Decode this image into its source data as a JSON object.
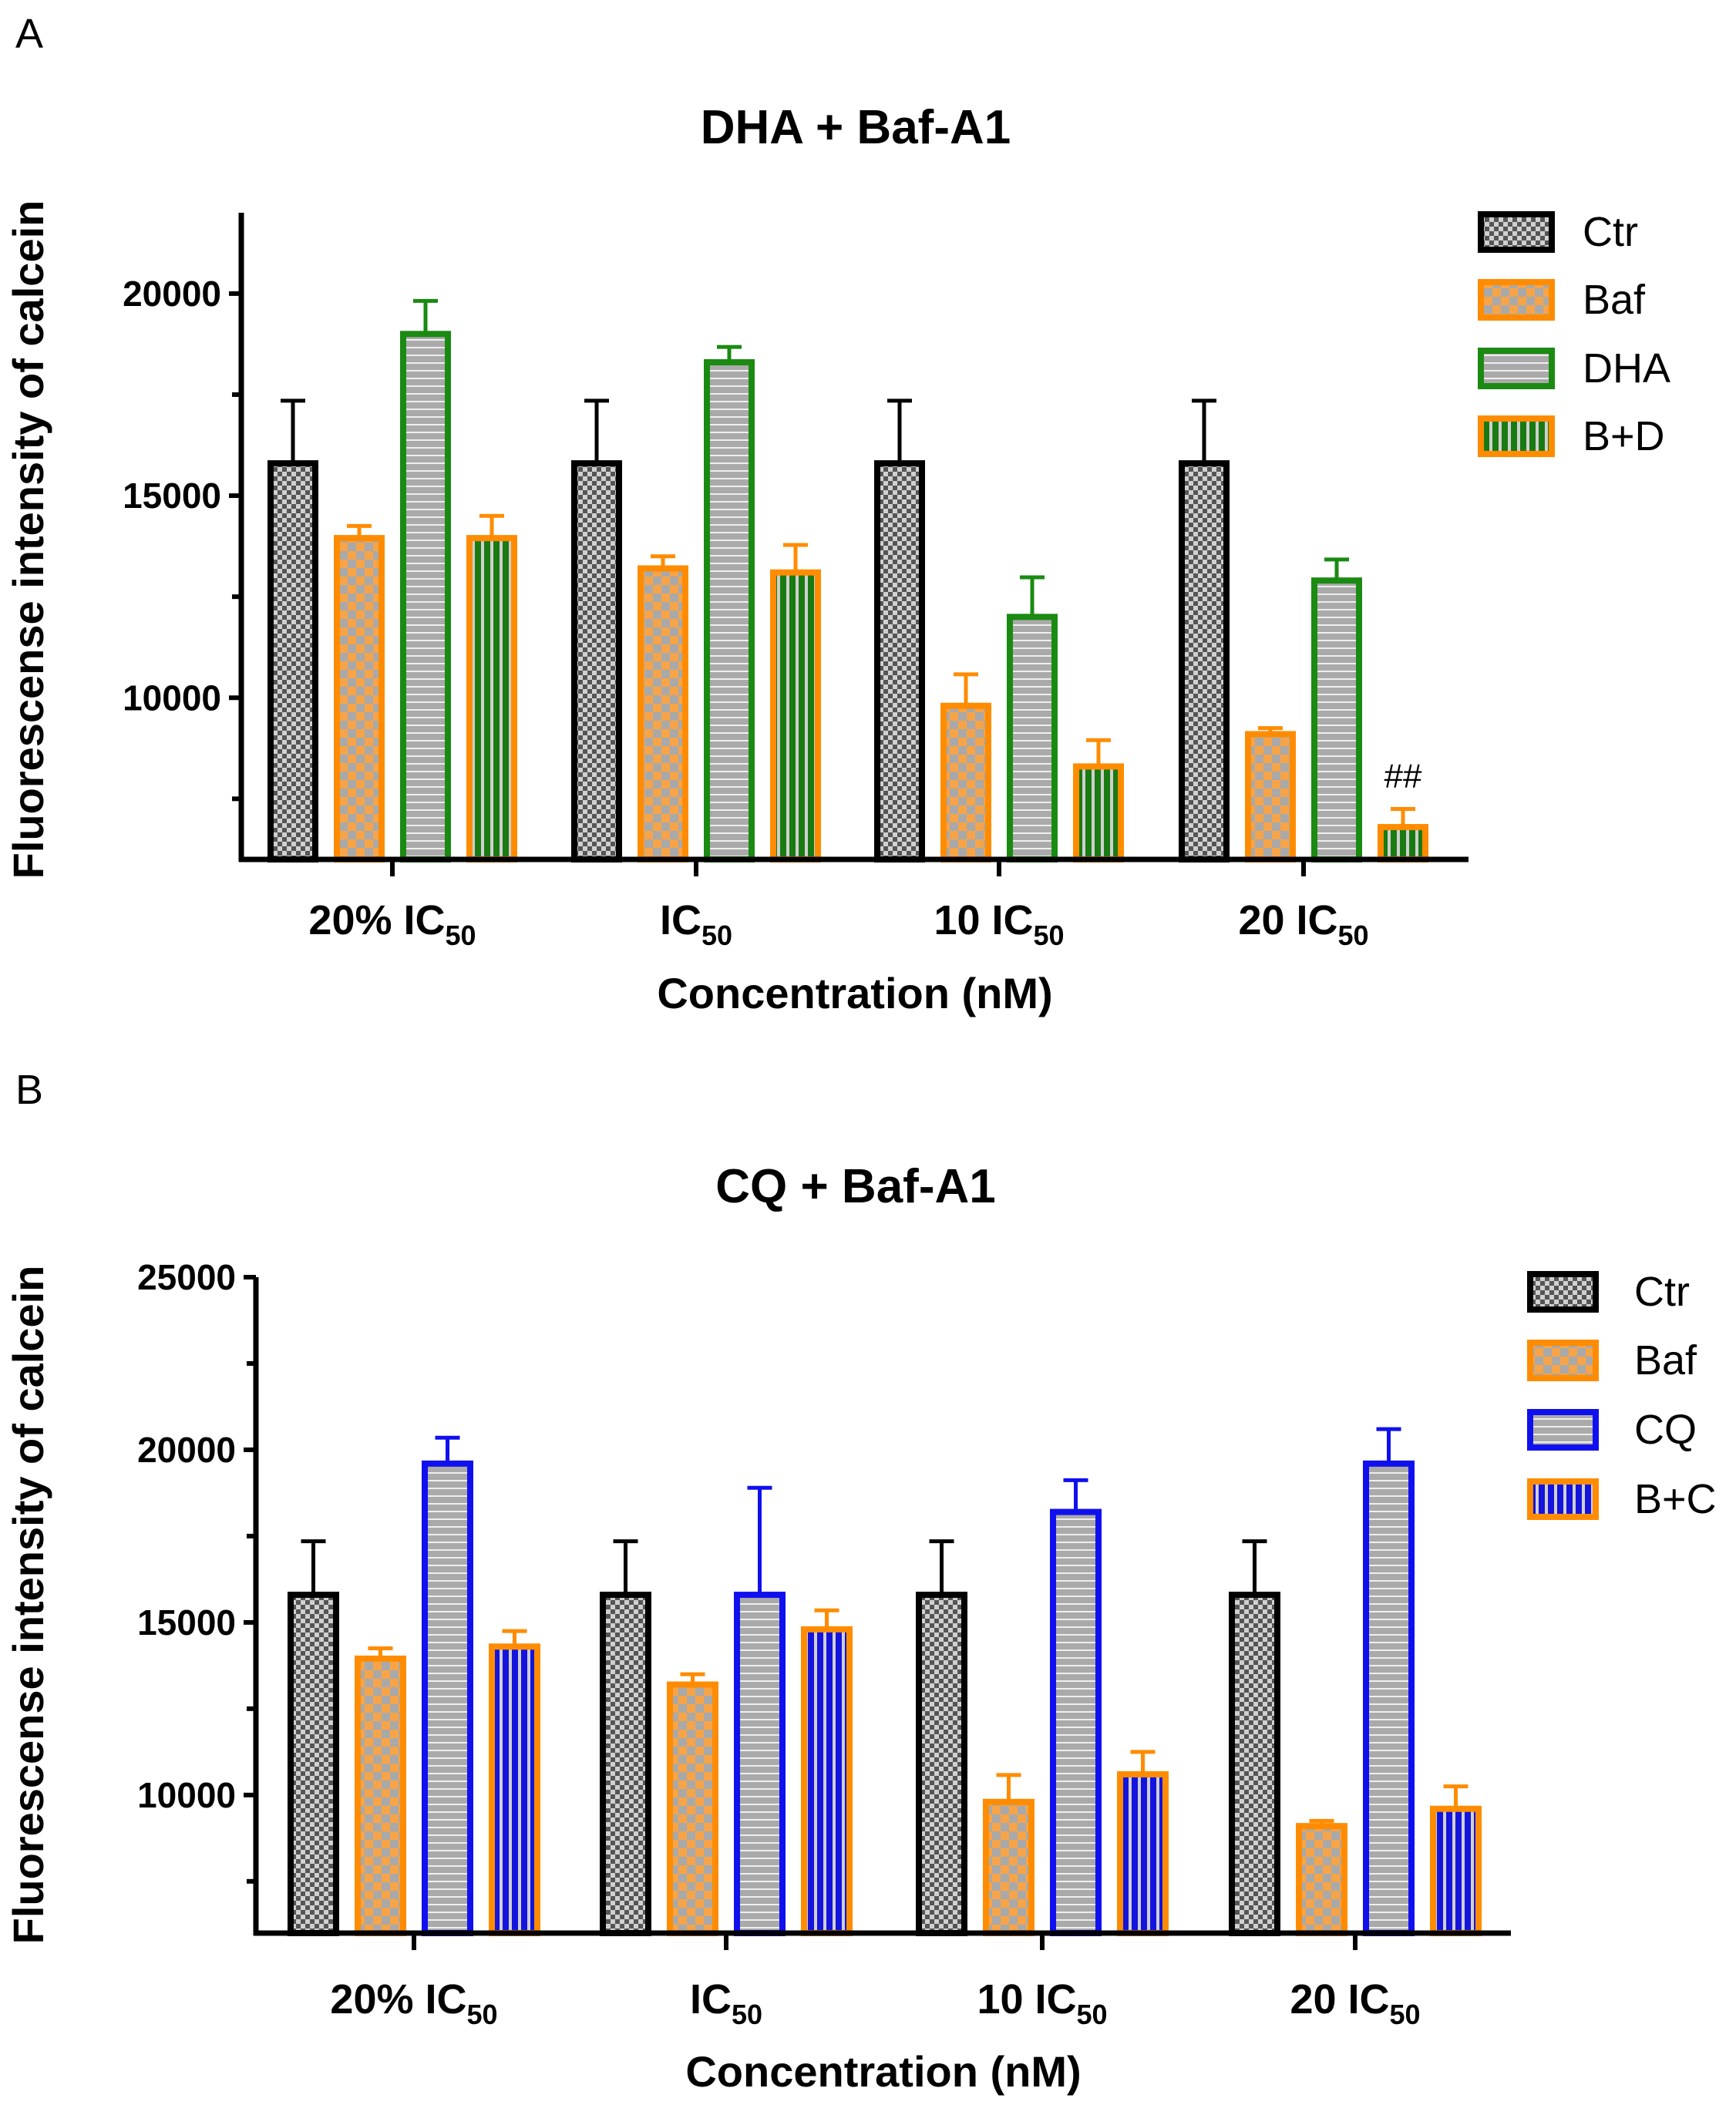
{
  "chart_data": [
    {
      "panel": "A",
      "type": "bar",
      "title": "DHA + Baf-A1",
      "xlabel": "Concentration (nM)",
      "ylabel": "Fluorescense intensity of calcein",
      "ylim": [
        6000,
        22000
      ],
      "yticks": [
        10000,
        15000,
        20000
      ],
      "minor_ticks": [
        7500,
        12500,
        17500
      ],
      "categories": [
        {
          "main": "20% IC",
          "sub": "50"
        },
        {
          "main": "IC",
          "sub": "50"
        },
        {
          "main": "10 IC",
          "sub": "50"
        },
        {
          "main": "20 IC",
          "sub": "50"
        }
      ],
      "series": [
        {
          "name": "Ctr",
          "pattern": "checker",
          "edge": "#000000",
          "fill": "#777777",
          "values": [
            15800,
            15800,
            15800,
            15800
          ],
          "errors": [
            1550,
            1550,
            1550,
            1550
          ]
        },
        {
          "name": "Baf",
          "pattern": "checker",
          "edge": "#ff8c00",
          "fill": "#f5a64b",
          "values": [
            13950,
            13200,
            9800,
            9100
          ],
          "errors": [
            300,
            300,
            780,
            150
          ]
        },
        {
          "name": "DHA",
          "pattern": "hlines",
          "edge": "#1a8a12",
          "fill": "#a3a3a3",
          "values": [
            19000,
            18300,
            12000,
            12900
          ],
          "errors": [
            820,
            380,
            980,
            520
          ]
        },
        {
          "name": "B+D",
          "pattern": "vlines",
          "edge": "#ff8c00",
          "fill": "#1a7a12",
          "values": [
            13950,
            13100,
            8300,
            6800
          ],
          "errors": [
            550,
            680,
            650,
            450
          ]
        }
      ],
      "annotations": [
        {
          "text": "##",
          "category": "20 IC50",
          "series": "B+D"
        }
      ],
      "legend_position": "top-right"
    },
    {
      "panel": "B",
      "type": "bar",
      "title": "CQ + Baf-A1",
      "xlabel": "Concentration (nM)",
      "ylabel": "Fluorescense intensity of calcein",
      "ylim": [
        6000,
        25000
      ],
      "yticks": [
        10000,
        15000,
        20000,
        25000
      ],
      "minor_ticks": [
        7500,
        12500,
        17500,
        22500
      ],
      "categories": [
        {
          "main": "20% IC",
          "sub": "50"
        },
        {
          "main": "IC",
          "sub": "50"
        },
        {
          "main": "10 IC",
          "sub": "50"
        },
        {
          "main": "20 IC",
          "sub": "50"
        }
      ],
      "series": [
        {
          "name": "Ctr",
          "pattern": "checker",
          "edge": "#000000",
          "fill": "#777777",
          "values": [
            15800,
            15800,
            15800,
            15800
          ],
          "errors": [
            1550,
            1550,
            1550,
            1550
          ]
        },
        {
          "name": "Baf",
          "pattern": "checker",
          "edge": "#ff8c00",
          "fill": "#f5a64b",
          "values": [
            13950,
            13200,
            9800,
            9100
          ],
          "errors": [
            300,
            300,
            780,
            150
          ]
        },
        {
          "name": "CQ",
          "pattern": "hlines",
          "edge": "#1010ee",
          "fill": "#a3a3a3",
          "values": [
            19600,
            15800,
            18200,
            19600
          ],
          "errors": [
            750,
            3100,
            920,
            1000
          ]
        },
        {
          "name": "B+C",
          "pattern": "vlines",
          "edge": "#ff8c00",
          "fill": "#1414dd",
          "values": [
            14300,
            14800,
            10600,
            9600
          ],
          "errors": [
            450,
            550,
            650,
            650
          ]
        }
      ],
      "annotations": [],
      "legend_position": "top-right"
    }
  ]
}
